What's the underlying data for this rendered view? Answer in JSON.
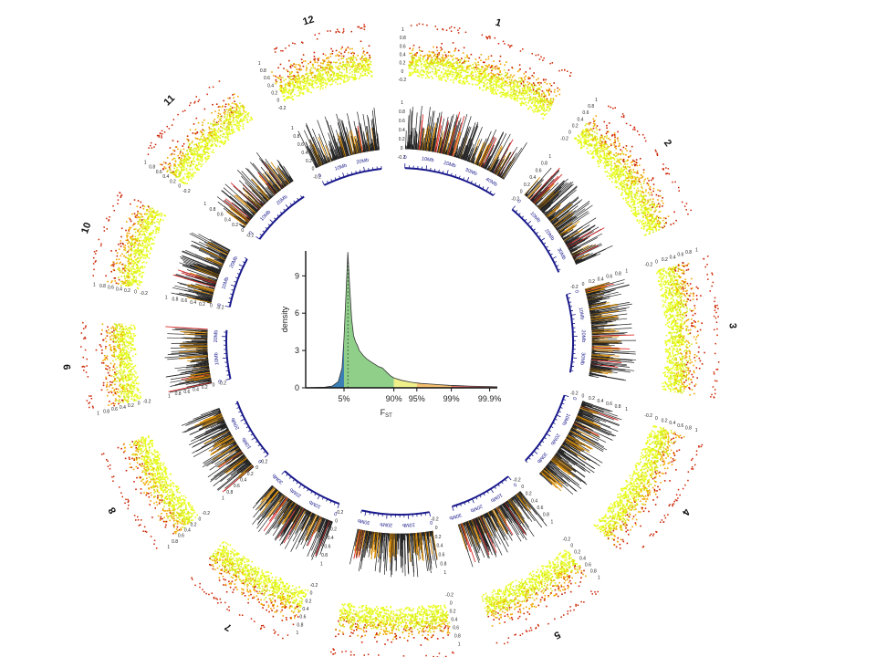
{
  "chart_data": [
    {
      "type": "circos",
      "chromosomes": [
        {
          "label": "1",
          "length_mb": 44
        },
        {
          "label": "2",
          "length_mb": 37
        },
        {
          "label": "3",
          "length_mb": 37
        },
        {
          "label": "4",
          "length_mb": 36
        },
        {
          "label": "5",
          "length_mb": 30
        },
        {
          "label": "6",
          "length_mb": 32
        },
        {
          "label": "7",
          "length_mb": 30
        },
        {
          "label": "8",
          "length_mb": 29
        },
        {
          "label": "9",
          "length_mb": 23
        },
        {
          "label": "10",
          "length_mb": 24
        },
        {
          "label": "11",
          "length_mb": 29
        },
        {
          "label": "12",
          "length_mb": 28
        }
      ],
      "tracks": [
        {
          "track": "outer scatter",
          "ylim": [
            -0.2,
            1
          ],
          "yticks": [
            "-0.2",
            "0",
            "0.2",
            "0.4",
            "0.6",
            "0.8",
            "1"
          ],
          "color_low": "#e8ff1a",
          "color_mid": "#f2a800",
          "color_high": "#cc2200"
        },
        {
          "track": "inner histogram",
          "ylim": [
            -0.2,
            1
          ],
          "yticks": [
            "-0.2",
            "0",
            "0.2",
            "0.4",
            "0.6",
            "0.8",
            "1"
          ],
          "colors": [
            "#222222",
            "#d98a00",
            "#e02a2a"
          ]
        },
        {
          "track": "ideogram",
          "tick_unit": "Mb",
          "tick_labels": [
            "0",
            "10Mb",
            "20Mb",
            "30Mb",
            "40Mb"
          ],
          "color": "#1a1a8c"
        }
      ]
    },
    {
      "type": "area",
      "xlabel": "F",
      "xlabel_sub": "ST",
      "ylabel": "density",
      "yticks": [
        0,
        3,
        6,
        9
      ],
      "ylim": [
        0,
        11
      ],
      "xlim": [
        0,
        1
      ],
      "x_ticks": [
        {
          "label": "5%",
          "x": 0.2
        },
        {
          "label": "90%",
          "x": 0.46
        },
        {
          "label": "95%",
          "x": 0.58
        },
        {
          "label": "99%",
          "x": 0.76
        },
        {
          "label": "99.9%",
          "x": 0.96
        }
      ],
      "x": [
        0.0,
        0.05,
        0.1,
        0.14,
        0.17,
        0.19,
        0.2,
        0.22,
        0.23,
        0.24,
        0.25,
        0.26,
        0.27,
        0.28,
        0.3,
        0.32,
        0.34,
        0.36,
        0.38,
        0.4,
        0.42,
        0.44,
        0.46,
        0.5,
        0.55,
        0.6,
        0.65,
        0.7,
        0.75,
        0.8,
        0.85,
        0.9,
        0.95,
        1.0
      ],
      "y": [
        0.0,
        0.02,
        0.05,
        0.15,
        0.5,
        1.6,
        4.0,
        10.9,
        8.0,
        5.5,
        4.2,
        3.7,
        3.4,
        3.0,
        2.6,
        2.3,
        2.1,
        1.9,
        1.7,
        1.6,
        1.3,
        1.0,
        0.8,
        0.6,
        0.45,
        0.35,
        0.3,
        0.25,
        0.2,
        0.17,
        0.14,
        0.12,
        0.1,
        0.08
      ],
      "fill_segments": [
        {
          "from": 0.0,
          "to": 0.2,
          "color": "#3b7fb5"
        },
        {
          "from": 0.2,
          "to": 0.46,
          "color": "#8fcf8a"
        },
        {
          "from": 0.46,
          "to": 0.58,
          "color": "#f0f08a"
        },
        {
          "from": 0.58,
          "to": 0.76,
          "color": "#f5c070"
        },
        {
          "from": 0.76,
          "to": 1.0,
          "color": "#e8706a"
        }
      ]
    }
  ]
}
